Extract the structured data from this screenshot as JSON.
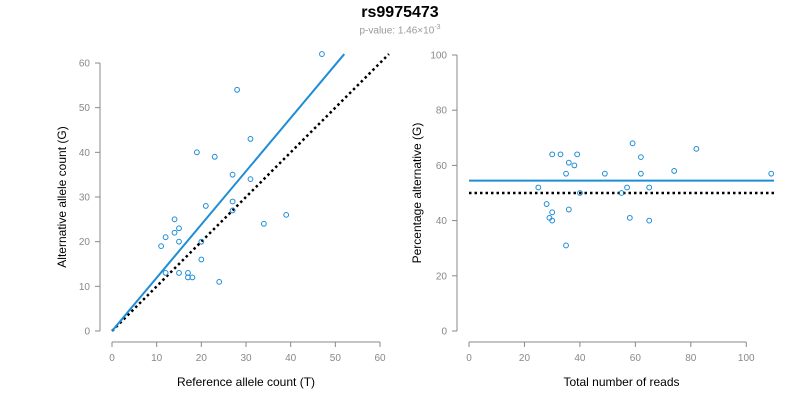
{
  "header": {
    "title": "rs9975473",
    "pvalue_label": "p-value: 1.46×10",
    "pvalue_exponent": "-3"
  },
  "colors": {
    "points": "#1f8dd6",
    "fit_line": "#1f8dd6",
    "reference_line": "#000000",
    "axis": "#888888"
  },
  "chart_data": [
    {
      "type": "scatter",
      "xlabel": "Reference allele count (T)",
      "ylabel": "Alternative allele count (G)",
      "xlim": [
        0,
        60
      ],
      "ylim": [
        0,
        60
      ],
      "xticks": [
        0,
        10,
        20,
        30,
        40,
        50,
        60
      ],
      "yticks": [
        0,
        10,
        20,
        30,
        40,
        50,
        60
      ],
      "points": [
        {
          "x": 47,
          "y": 62
        },
        {
          "x": 28,
          "y": 54
        },
        {
          "x": 31,
          "y": 43
        },
        {
          "x": 19,
          "y": 40
        },
        {
          "x": 23,
          "y": 39
        },
        {
          "x": 27,
          "y": 35
        },
        {
          "x": 31,
          "y": 34
        },
        {
          "x": 21,
          "y": 28
        },
        {
          "x": 27,
          "y": 29
        },
        {
          "x": 27,
          "y": 27
        },
        {
          "x": 39,
          "y": 26
        },
        {
          "x": 14,
          "y": 25
        },
        {
          "x": 34,
          "y": 24
        },
        {
          "x": 15,
          "y": 23
        },
        {
          "x": 14,
          "y": 22
        },
        {
          "x": 12,
          "y": 21
        },
        {
          "x": 15,
          "y": 20
        },
        {
          "x": 20,
          "y": 20
        },
        {
          "x": 11,
          "y": 19
        },
        {
          "x": 20,
          "y": 16
        },
        {
          "x": 12,
          "y": 13
        },
        {
          "x": 15,
          "y": 13
        },
        {
          "x": 17,
          "y": 13
        },
        {
          "x": 17,
          "y": 12
        },
        {
          "x": 18,
          "y": 12
        },
        {
          "x": 24,
          "y": 11
        }
      ],
      "fit_line": {
        "from": [
          0,
          0
        ],
        "to": [
          52,
          62
        ]
      },
      "reference_line": {
        "from": [
          0,
          0
        ],
        "to": [
          62,
          62
        ]
      }
    },
    {
      "type": "scatter",
      "xlabel": "Total number of reads",
      "ylabel": "Percentage alternative (G)",
      "xlim": [
        0,
        110
      ],
      "ylim": [
        0,
        100
      ],
      "xticks": [
        0,
        20,
        40,
        60,
        80,
        100
      ],
      "yticks": [
        0,
        20,
        40,
        60,
        80,
        100
      ],
      "points": [
        {
          "x": 25,
          "y": 52
        },
        {
          "x": 28,
          "y": 46
        },
        {
          "x": 29,
          "y": 41
        },
        {
          "x": 30,
          "y": 40
        },
        {
          "x": 30,
          "y": 43
        },
        {
          "x": 30,
          "y": 64
        },
        {
          "x": 33,
          "y": 64
        },
        {
          "x": 35,
          "y": 57
        },
        {
          "x": 35,
          "y": 31
        },
        {
          "x": 36,
          "y": 44
        },
        {
          "x": 36,
          "y": 61
        },
        {
          "x": 38,
          "y": 60
        },
        {
          "x": 39,
          "y": 64
        },
        {
          "x": 40,
          "y": 50
        },
        {
          "x": 49,
          "y": 57
        },
        {
          "x": 55,
          "y": 50
        },
        {
          "x": 57,
          "y": 52
        },
        {
          "x": 58,
          "y": 41
        },
        {
          "x": 59,
          "y": 68
        },
        {
          "x": 62,
          "y": 57
        },
        {
          "x": 62,
          "y": 63
        },
        {
          "x": 65,
          "y": 52
        },
        {
          "x": 65,
          "y": 40
        },
        {
          "x": 74,
          "y": 58
        },
        {
          "x": 82,
          "y": 66
        },
        {
          "x": 109,
          "y": 57
        }
      ],
      "fit_line": {
        "from": [
          0,
          54.5
        ],
        "to": [
          110,
          54.5
        ]
      },
      "reference_line": {
        "from": [
          0,
          50
        ],
        "to": [
          110,
          50
        ]
      }
    }
  ]
}
